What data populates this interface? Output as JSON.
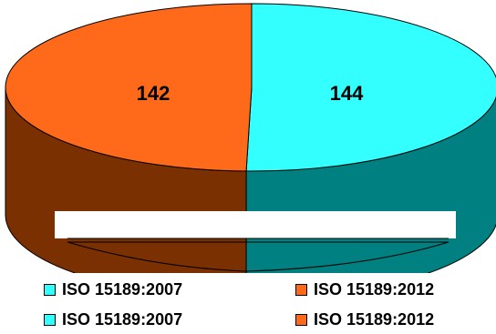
{
  "chart_data": {
    "type": "pie",
    "title": "",
    "categories": [
      "ISO 15189:2007",
      "ISO 15189:2012"
    ],
    "values": [
      144,
      142
    ],
    "data_labels": [
      "144",
      "142"
    ],
    "colors": {
      "ISO 15189:2007": {
        "top": "#33ffff",
        "side": "#008080"
      },
      "ISO 15189:2012": {
        "top": "#ff6a1a",
        "side": "#7a3000"
      }
    },
    "style": "3d-cylinder",
    "legend": {
      "position": "bottom",
      "entries": [
        {
          "label": "ISO 15189:2007",
          "color": "#33ffff"
        },
        {
          "label": "ISO 15189:2012",
          "color": "#ff6a1a"
        },
        {
          "label": "ISO 15189:2007",
          "color": "#33ffff"
        },
        {
          "label": "ISO 15189:2012",
          "color": "#ff6a1a"
        }
      ]
    }
  }
}
